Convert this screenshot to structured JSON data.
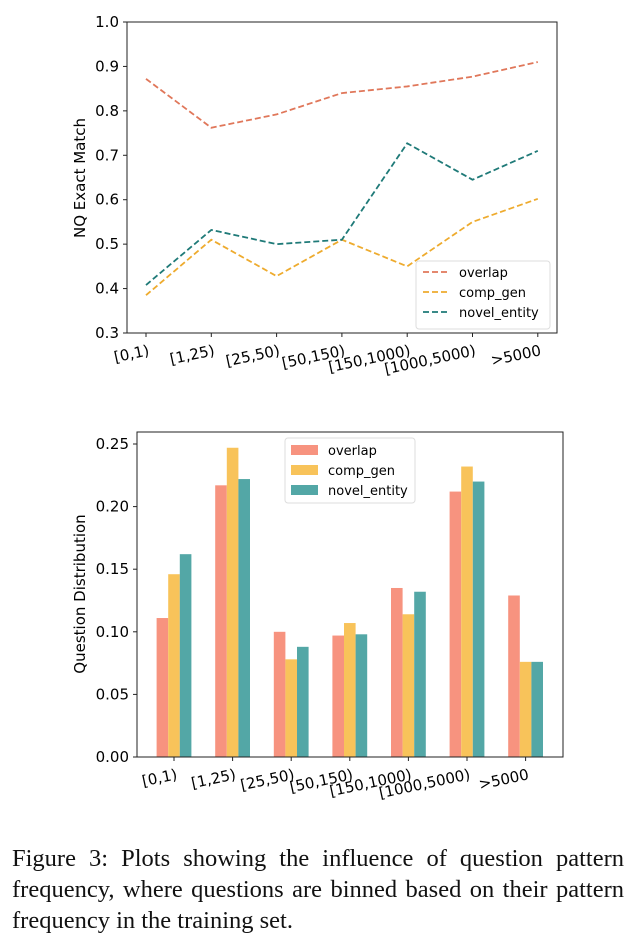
{
  "chart_data": [
    {
      "type": "line",
      "title": "",
      "xlabel": "",
      "ylabel": "NQ Exact Match",
      "categories": [
        "[0,1)",
        "[1,25)",
        "[25,50)",
        "[50,150)",
        "[150,1000)",
        "[1000,5000)",
        ">5000"
      ],
      "ylim": [
        0.3,
        1.0
      ],
      "yticks": [
        "0.3",
        "0.4",
        "0.5",
        "0.6",
        "0.7",
        "0.8",
        "0.9",
        "1.0"
      ],
      "line_style": "dashed",
      "grid": false,
      "legend_position": "lower-right",
      "series": [
        {
          "name": "overlap",
          "color": "#e0775a",
          "values": [
            0.872,
            0.762,
            0.792,
            0.84,
            0.855,
            0.877,
            0.91
          ]
        },
        {
          "name": "comp_gen",
          "color": "#eeab2e",
          "values": [
            0.385,
            0.51,
            0.428,
            0.51,
            0.45,
            0.55,
            0.602
          ]
        },
        {
          "name": "novel_entity",
          "color": "#1f7a78",
          "values": [
            0.408,
            0.532,
            0.5,
            0.51,
            0.727,
            0.645,
            0.71
          ]
        }
      ]
    },
    {
      "type": "bar",
      "title": "",
      "xlabel": "",
      "ylabel": "Question Distribution",
      "categories": [
        "[0,1)",
        "[1,25)",
        "[25,50)",
        "[50,150)",
        "[150,1000)",
        "[1000,5000)",
        ">5000"
      ],
      "ylim": [
        0.0,
        0.26
      ],
      "yticks": [
        "0.00",
        "0.05",
        "0.10",
        "0.15",
        "0.20",
        "0.25"
      ],
      "grid": false,
      "legend_position": "upper-center",
      "series": [
        {
          "name": "overlap",
          "color": "#f7937f",
          "values": [
            0.111,
            0.217,
            0.1,
            0.097,
            0.135,
            0.212,
            0.129
          ]
        },
        {
          "name": "comp_gen",
          "color": "#f8c35a",
          "values": [
            0.146,
            0.247,
            0.078,
            0.107,
            0.114,
            0.232,
            0.076
          ]
        },
        {
          "name": "novel_entity",
          "color": "#53a7a6",
          "values": [
            0.162,
            0.222,
            0.088,
            0.098,
            0.132,
            0.22,
            0.076
          ]
        }
      ]
    }
  ],
  "caption": "Figure 3: Plots showing the influence of question pattern frequency, where questions are binned based on their pattern frequency in the training set."
}
